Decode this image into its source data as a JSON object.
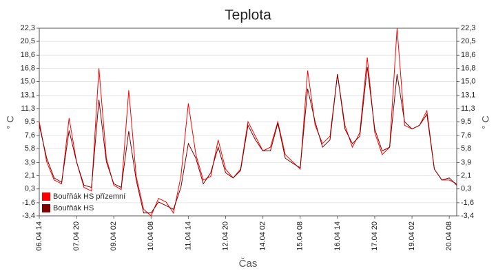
{
  "chart_data": {
    "type": "line",
    "title": "Teplota",
    "xlabel": "Čas",
    "ylabel": "° C",
    "x": [
      "06.04 14",
      "06.04 20",
      "07.04 02",
      "07.04 08",
      "07.04 14",
      "07.04 20",
      "08.04 02",
      "08.04 08",
      "08.04 14",
      "08.04 20",
      "09.04 02",
      "09.04 08",
      "09.04 14",
      "09.04 20",
      "10.04 02",
      "10.04 08",
      "10.04 14",
      "10.04 20",
      "11.04 02",
      "11.04 08",
      "11.04 14",
      "11.04 20",
      "12.04 02",
      "12.04 08",
      "12.04 14",
      "12.04 20",
      "13.04 02",
      "13.04 08",
      "13.04 14",
      "13.04 20",
      "14.04 02",
      "14.04 08",
      "14.04 14",
      "14.04 20",
      "15.04 02",
      "15.04 08",
      "15.04 14",
      "15.04 20",
      "16.04 02",
      "16.04 08",
      "16.04 14",
      "16.04 20",
      "17.04 02",
      "17.04 08",
      "17.04 14",
      "17.04 20",
      "18.04 02",
      "18.04 08",
      "18.04 14",
      "18.04 20",
      "19.04 02",
      "19.04 08",
      "19.04 14",
      "19.04 20",
      "20.04 02",
      "20.04 08",
      "20.04 14"
    ],
    "series": [
      {
        "name": "Bouřňák HS přízemní",
        "color": "#ff0000",
        "values": [
          9.5,
          4.0,
          1.5,
          1.0,
          10.0,
          4.0,
          0.5,
          0.0,
          16.8,
          4.5,
          0.8,
          0.2,
          13.8,
          2.0,
          -2.5,
          -3.4,
          -1.0,
          -1.5,
          -3.0,
          2.0,
          12.0,
          5.0,
          1.5,
          2.0,
          7.0,
          3.0,
          1.8,
          3.0,
          9.5,
          7.5,
          5.5,
          6.0,
          9.5,
          5.0,
          4.0,
          3.0,
          16.5,
          9.0,
          6.5,
          7.5,
          16.0,
          9.0,
          6.0,
          8.0,
          18.3,
          8.0,
          5.0,
          6.0,
          22.3,
          9.0,
          8.5,
          9.0,
          11.0,
          3.0,
          1.5,
          1.5,
          1.0
        ]
      },
      {
        "name": "Bouřňák HS",
        "color": "#800000",
        "values": [
          9.0,
          4.5,
          1.8,
          1.2,
          8.3,
          4.0,
          0.8,
          0.5,
          12.5,
          4.0,
          1.0,
          0.5,
          8.2,
          1.5,
          -3.0,
          -3.0,
          -1.5,
          -2.0,
          -2.5,
          0.5,
          6.5,
          4.5,
          1.0,
          2.5,
          6.0,
          2.5,
          1.8,
          2.8,
          9.0,
          7.0,
          5.5,
          5.5,
          9.3,
          4.5,
          3.8,
          3.2,
          14.0,
          9.5,
          6.0,
          7.0,
          16.0,
          8.5,
          6.5,
          7.5,
          17.0,
          8.5,
          5.5,
          6.0,
          16.0,
          9.5,
          8.5,
          9.0,
          10.5,
          3.0,
          1.5,
          1.8,
          0.8
        ]
      }
    ],
    "xlim": [
      "06.04 14",
      "20.04 14"
    ],
    "xticks": [
      "06.04 14",
      "07.04 20",
      "09.04 02",
      "10.04 08",
      "11.04 14",
      "12.04 20",
      "14.04 02",
      "15.04 08",
      "16.04 14",
      "17.04 20",
      "19.04 02",
      "20.04 08"
    ],
    "ylim": [
      -3.4,
      22.3
    ],
    "yticks": [
      {
        "value": -3.4,
        "label": "-3,4"
      },
      {
        "value": -1.6,
        "label": "-1,6"
      },
      {
        "value": 0.3,
        "label": "0,3"
      },
      {
        "value": 2.1,
        "label": "2,1"
      },
      {
        "value": 3.9,
        "label": "3,9"
      },
      {
        "value": 5.8,
        "label": "5,8"
      },
      {
        "value": 7.6,
        "label": "7,6"
      },
      {
        "value": 9.5,
        "label": "9,5"
      },
      {
        "value": 11.3,
        "label": "11,3"
      },
      {
        "value": 13.1,
        "label": "13,1"
      },
      {
        "value": 15.0,
        "label": "15,0"
      },
      {
        "value": 16.8,
        "label": "16,8"
      },
      {
        "value": 18.6,
        "label": "18,6"
      },
      {
        "value": 20.5,
        "label": "20,5"
      },
      {
        "value": 22.3,
        "label": "22,3"
      }
    ],
    "grid": true,
    "legend": "lower left"
  }
}
